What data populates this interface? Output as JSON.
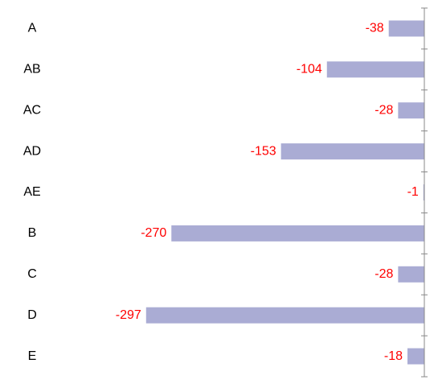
{
  "chart_data": {
    "type": "bar",
    "orientation": "horizontal",
    "categories": [
      "A",
      "AB",
      "AC",
      "AD",
      "AE",
      "B",
      "C",
      "D",
      "E"
    ],
    "values": [
      -38,
      -104,
      -28,
      -153,
      -1,
      -270,
      -28,
      -297,
      -18
    ],
    "color": "#aaacd4",
    "label_color": "#ff0000",
    "xlim": [
      -350,
      0
    ]
  }
}
